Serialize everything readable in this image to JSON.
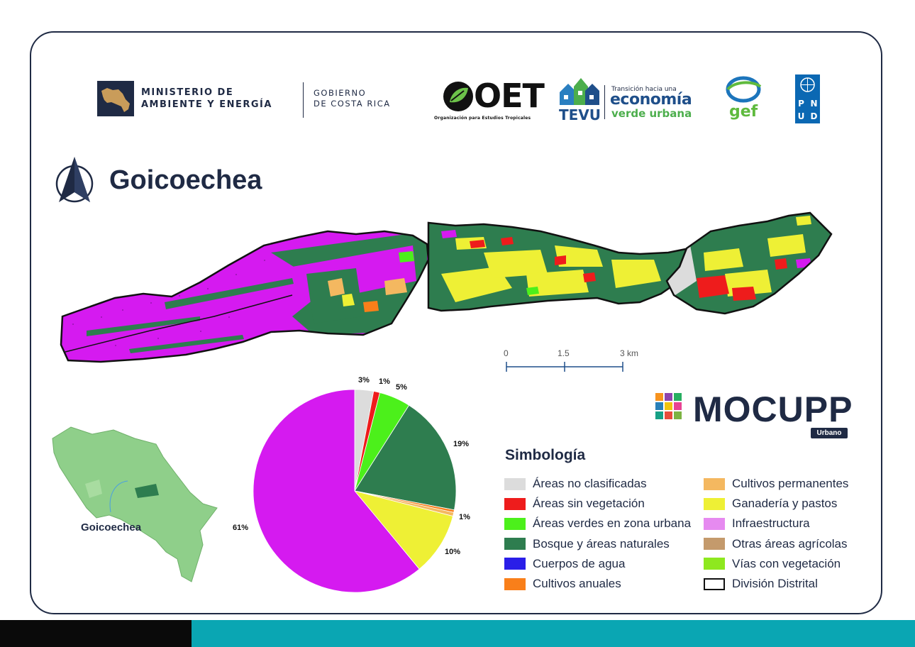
{
  "title": "Goicoechea",
  "logos": {
    "ministerio_line1": "MINISTERIO DE",
    "ministerio_line2": "AMBIENTE Y ENERGÍA",
    "gobierno_line1": "GOBIERNO",
    "gobierno_line2": "DE COSTA RICA",
    "oet_name": "OET",
    "oet_sub": "Organización para Estudios Tropicales",
    "tevu": "TEVU",
    "economia_small": "Transición hacia una",
    "economia_big": "economía",
    "economia_green": "verde urbana",
    "gef": "gef",
    "pnud_letters": [
      "P",
      "N",
      "U",
      "D"
    ],
    "north_icon": "north-arrow-icon"
  },
  "scale_bar": {
    "labels": [
      "0",
      "1.5",
      "3 km"
    ]
  },
  "mocupp": {
    "name": "MOCUPP",
    "sub": "Urbano"
  },
  "inset_map": {
    "label": "Goicoechea"
  },
  "legend": {
    "title": "Simbología",
    "items": [
      {
        "label": "Áreas no clasificadas",
        "color": "#dcdcdc"
      },
      {
        "label": "Áreas sin vegetación",
        "color": "#ee1c1c"
      },
      {
        "label": "Áreas verdes en zona urbana",
        "color": "#4cf01b"
      },
      {
        "label": "Bosque y áreas naturales",
        "color": "#2e7d4f"
      },
      {
        "label": "Cuerpos de agua",
        "color": "#2a1ee8"
      },
      {
        "label": "Cultivos anuales",
        "color": "#f97f1a"
      },
      {
        "label": "Cultivos permanentes",
        "color": "#f4b860"
      },
      {
        "label": "Ganadería y pastos",
        "color": "#eef035"
      },
      {
        "label": "Infraestructura",
        "color": "#e68af0"
      },
      {
        "label": "Otras áreas agrícolas",
        "color": "#c49a6c"
      },
      {
        "label": "Vías con vegetación",
        "color": "#8ee81f"
      },
      {
        "label": "División Distrital",
        "color": "#ffffff"
      }
    ]
  },
  "chart_data": {
    "type": "pie",
    "slices": [
      {
        "category": "Áreas no clasificadas",
        "value": 3,
        "label": "3%",
        "color": "#dcdcdc"
      },
      {
        "category": "Áreas sin vegetación",
        "value": 1,
        "label": "1%",
        "color": "#ee1c1c"
      },
      {
        "category": "Áreas verdes en zona urbana",
        "value": 5,
        "label": "5%",
        "color": "#4cf01b"
      },
      {
        "category": "Bosque y áreas naturales",
        "value": 19,
        "label": "19%",
        "color": "#2e7d4f"
      },
      {
        "category": "Cultivos anuales",
        "value": 0.4,
        "label": "",
        "color": "#f97f1a"
      },
      {
        "category": "Cultivos permanentes",
        "value": 0.6,
        "label": "1%",
        "color": "#f4b860"
      },
      {
        "category": "Ganadería y pastos",
        "value": 10,
        "label": "10%",
        "color": "#eef035"
      },
      {
        "category": "Infraestructura",
        "value": 61,
        "label": "61%",
        "color": "#d51af0"
      }
    ]
  }
}
